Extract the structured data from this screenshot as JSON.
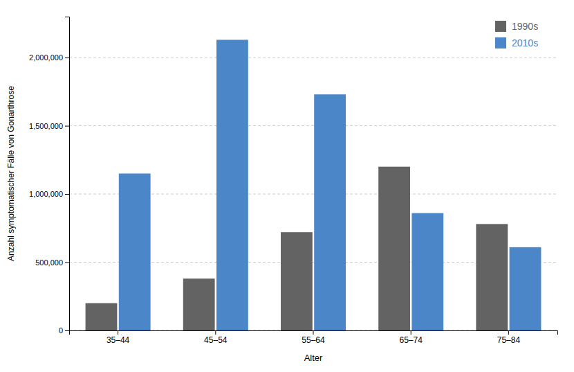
{
  "chart_data": {
    "type": "bar",
    "xlabel": "Alter",
    "ylabel": "Anzahl symptomatischer Fälle von Gonarthrose",
    "categories": [
      "35–44",
      "45–54",
      "55–64",
      "65–74",
      "75–84"
    ],
    "series": [
      {
        "name": "1990s",
        "color": "#636363",
        "values": [
          200000,
          380000,
          720000,
          1200000,
          780000
        ]
      },
      {
        "name": "2010s",
        "color": "#4a86c8",
        "values": [
          1150000,
          2130000,
          1730000,
          860000,
          610000
        ]
      }
    ],
    "ylim": [
      0,
      2300000
    ],
    "yticks": [
      0,
      {
        "value": 500000,
        "label": "500,000"
      },
      {
        "value": 1000000,
        "label": "1,000,000"
      },
      {
        "value": 1500000,
        "label": "1,500,000"
      },
      {
        "value": 2000000,
        "label": "2,000,000"
      }
    ],
    "grid": true,
    "legend": "upper right"
  }
}
